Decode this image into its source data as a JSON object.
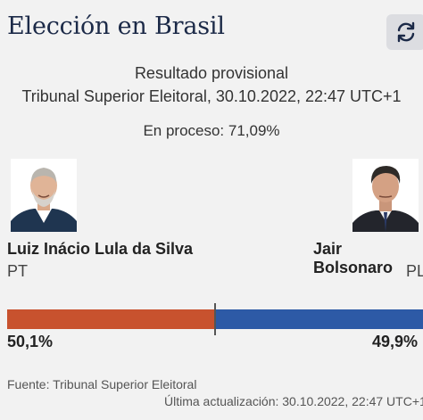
{
  "header": {
    "title": "Elección en Brasil",
    "refresh_icon": "refresh-icon"
  },
  "status": {
    "line1": "Resultado provisional",
    "line2": "Tribunal Superior Eleitoral, 30.10.2022, 22:47 UTC+1",
    "progress_text": "En proceso: 71,09%"
  },
  "candidates": [
    {
      "name": "Luiz Inácio Lula da Silva",
      "party": "PT",
      "percent_text": "50,1%",
      "share": 50.1,
      "color": "#c8522e"
    },
    {
      "name": "Jair Bolsonaro",
      "party": "PL",
      "percent_text": "49,9%",
      "share": 49.9,
      "color": "#2d5aa6"
    }
  ],
  "footer": {
    "source": "Fuente: Tribunal Superior Eleitoral",
    "updated": "Última actualización: 30.10.2022, 22:47 UTC+1"
  }
}
